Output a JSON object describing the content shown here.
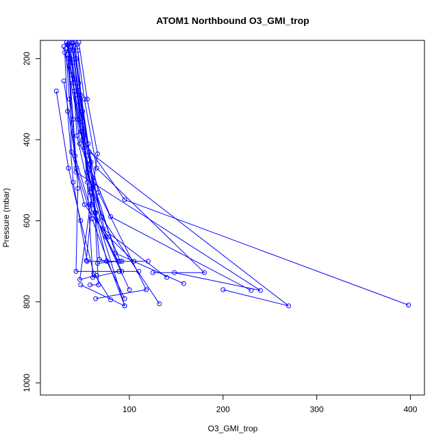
{
  "chart_data": {
    "type": "line",
    "title": "ATOM1 Northbound O3_GMI_trop",
    "xlabel": "O3_GMI_trop",
    "ylabel": "Pressure (mbar)",
    "xlim": [
      5,
      415
    ],
    "ylim": [
      1030,
      155
    ],
    "y_reversed": true,
    "x_ticks": [
      100,
      200,
      300,
      400
    ],
    "y_ticks": [
      200,
      400,
      600,
      800,
      1000
    ],
    "grid": false,
    "legend": "none",
    "colors": {
      "series": "#0000ff",
      "axis": "#000000"
    },
    "series": [
      {
        "points": [
          [
            22,
            280
          ],
          [
            35,
            470
          ],
          [
            48,
            600
          ],
          [
            62,
            730
          ],
          [
            80,
            795
          ]
        ]
      },
      {
        "points": [
          [
            30,
            170
          ],
          [
            45,
            350
          ],
          [
            60,
            520
          ],
          [
            90,
            700
          ],
          [
            120,
            700
          ]
        ]
      },
      {
        "points": [
          [
            33,
            160
          ],
          [
            40,
            260
          ],
          [
            52,
            420
          ],
          [
            66,
            600
          ],
          [
            100,
            770
          ]
        ]
      },
      {
        "points": [
          [
            35,
            165
          ],
          [
            44,
            290
          ],
          [
            58,
            460
          ],
          [
            75,
            640
          ],
          [
            92,
            725
          ]
        ]
      },
      {
        "points": [
          [
            38,
            160
          ],
          [
            47,
            310
          ],
          [
            55,
            480
          ],
          [
            72,
            620
          ],
          [
            140,
            740
          ]
        ]
      },
      {
        "points": [
          [
            40,
            160
          ],
          [
            50,
            330
          ],
          [
            62,
            510
          ],
          [
            85,
            680
          ],
          [
            158,
            755
          ]
        ]
      },
      {
        "points": [
          [
            34,
            165
          ],
          [
            38,
            240
          ],
          [
            48,
            380
          ],
          [
            64,
            580
          ],
          [
            95,
            810
          ]
        ]
      },
      {
        "points": [
          [
            36,
            160
          ],
          [
            42,
            250
          ],
          [
            50,
            400
          ],
          [
            95,
            548
          ],
          [
            398,
            808
          ]
        ]
      },
      {
        "points": [
          [
            32,
            175
          ],
          [
            36,
            300
          ],
          [
            43,
            480
          ],
          [
            240,
            772
          ],
          [
            148,
            728
          ]
        ]
      },
      {
        "points": [
          [
            42,
            160
          ],
          [
            46,
            260
          ],
          [
            54,
            440
          ],
          [
            70,
            590
          ],
          [
            132,
            805
          ]
        ]
      },
      {
        "points": [
          [
            37,
            170
          ],
          [
            41,
            280
          ],
          [
            47,
            410
          ],
          [
            80,
            590
          ],
          [
            230,
            772
          ]
        ]
      },
      {
        "points": [
          [
            44,
            165
          ],
          [
            52,
            300
          ],
          [
            65,
            470
          ],
          [
            180,
            728
          ],
          [
            125,
            728
          ]
        ]
      },
      {
        "points": [
          [
            31,
            185
          ],
          [
            34,
            330
          ],
          [
            40,
            505
          ],
          [
            55,
            700
          ],
          [
            92,
            700
          ]
        ]
      },
      {
        "points": [
          [
            39,
            162
          ],
          [
            45,
            270
          ],
          [
            57,
            430
          ],
          [
            270,
            810
          ],
          [
            200,
            770
          ]
        ]
      },
      {
        "points": [
          [
            41,
            170
          ],
          [
            48,
            290
          ],
          [
            59,
            455
          ],
          [
            68,
            695
          ],
          [
            76,
            700
          ]
        ]
      },
      {
        "points": [
          [
            35,
            200
          ],
          [
            40,
            350
          ],
          [
            45,
            520
          ],
          [
            43,
            725
          ],
          [
            110,
            725
          ]
        ]
      },
      {
        "points": [
          [
            46,
            160
          ],
          [
            55,
            300
          ],
          [
            66,
            435
          ],
          [
            47,
            745
          ],
          [
            65,
            735
          ]
        ]
      },
      {
        "points": [
          [
            33,
            160
          ],
          [
            39,
            210
          ],
          [
            44,
            390
          ],
          [
            60,
            560
          ],
          [
            54,
            698
          ]
        ]
      },
      {
        "points": [
          [
            30,
            255
          ],
          [
            42,
            440
          ],
          [
            57,
            560
          ],
          [
            88,
            700
          ],
          [
            66,
            705
          ]
        ]
      },
      {
        "points": [
          [
            36,
            180
          ],
          [
            38,
            430
          ],
          [
            60,
            595
          ],
          [
            95,
            810
          ],
          [
            48,
            758
          ]
        ]
      },
      {
        "points": [
          [
            43,
            200
          ],
          [
            56,
            410
          ],
          [
            63,
            580
          ],
          [
            67,
            758
          ],
          [
            58,
            758
          ]
        ]
      },
      {
        "points": [
          [
            37,
            200
          ],
          [
            50,
            355
          ],
          [
            67,
            530
          ],
          [
            118,
            770
          ],
          [
            64,
            792
          ]
        ]
      },
      {
        "points": [
          [
            45,
            180
          ],
          [
            51,
            390
          ],
          [
            55,
            505
          ],
          [
            61,
            740
          ],
          [
            89,
            725
          ]
        ]
      },
      {
        "points": [
          [
            34,
            190
          ],
          [
            43,
            470
          ],
          [
            52,
            560
          ],
          [
            78,
            640
          ],
          [
            105,
            700
          ]
        ]
      },
      {
        "points": [
          [
            40,
            180
          ],
          [
            49,
            380
          ],
          [
            58,
            530
          ],
          [
            76,
            700
          ],
          [
            95,
            792
          ]
        ]
      }
    ]
  }
}
